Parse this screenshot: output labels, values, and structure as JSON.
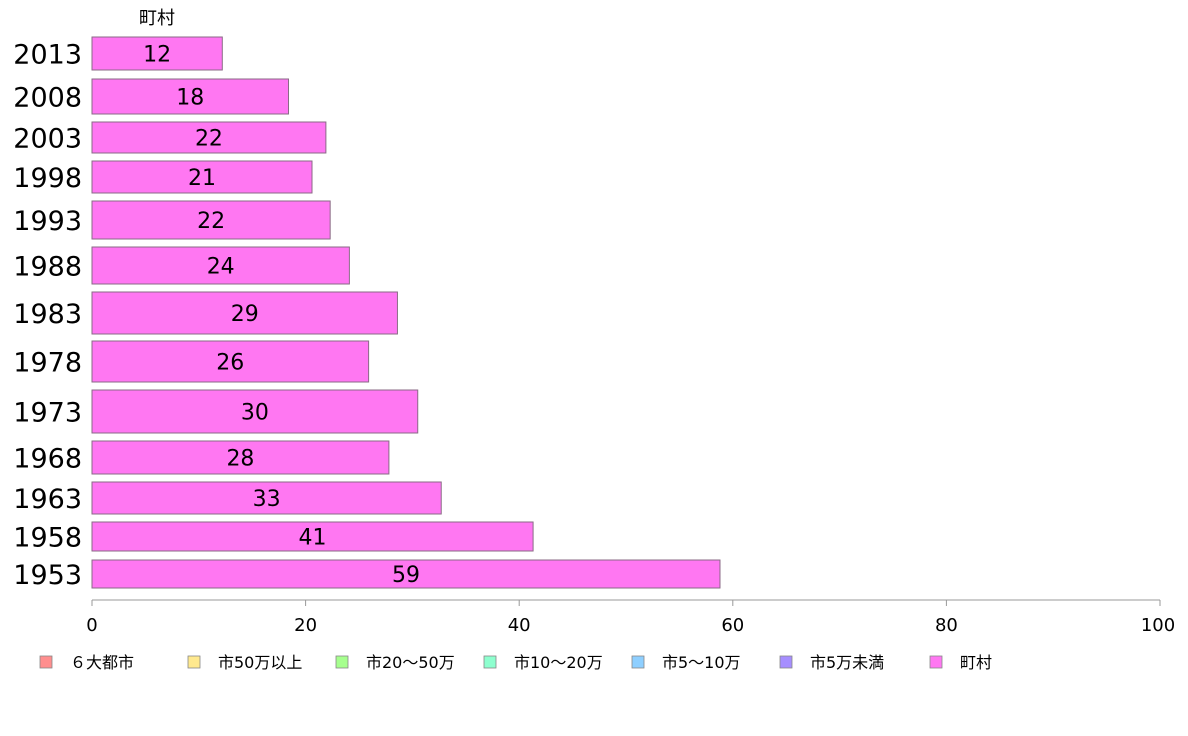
{
  "chart_data": {
    "type": "bar",
    "orientation": "horizontal",
    "series_title": "町村",
    "categories": [
      "2013",
      "2008",
      "2003",
      "1998",
      "1993",
      "1988",
      "1983",
      "1978",
      "1973",
      "1968",
      "1963",
      "1958",
      "1953"
    ],
    "values": [
      12,
      18,
      22,
      21,
      22,
      24,
      29,
      26,
      30,
      28,
      33,
      41,
      59
    ],
    "bar_values": [
      12.2,
      18.4,
      21.9,
      20.6,
      22.3,
      24.1,
      28.6,
      25.9,
      30.5,
      27.8,
      32.7,
      41.3,
      58.8
    ],
    "bar_color": "#ff77f2",
    "xlim": [
      0,
      100
    ],
    "xticks": [
      "0",
      "20",
      "40",
      "60",
      "80",
      "100"
    ],
    "xtick_values": [
      0,
      20,
      40,
      60,
      80,
      100
    ],
    "legend_position": "bottom",
    "legend": [
      {
        "label": "６大都市",
        "color": "#ff8e8e"
      },
      {
        "label": "市50万以上",
        "color": "#ffe98e"
      },
      {
        "label": "市20〜50万",
        "color": "#a6ff8e"
      },
      {
        "label": "市10〜20万",
        "color": "#8effcf"
      },
      {
        "label": "市5〜10万",
        "color": "#8ecfff"
      },
      {
        "label": "市5万未満",
        "color": "#a68eff"
      },
      {
        "label": "町村",
        "color": "#ff77f2"
      }
    ]
  }
}
